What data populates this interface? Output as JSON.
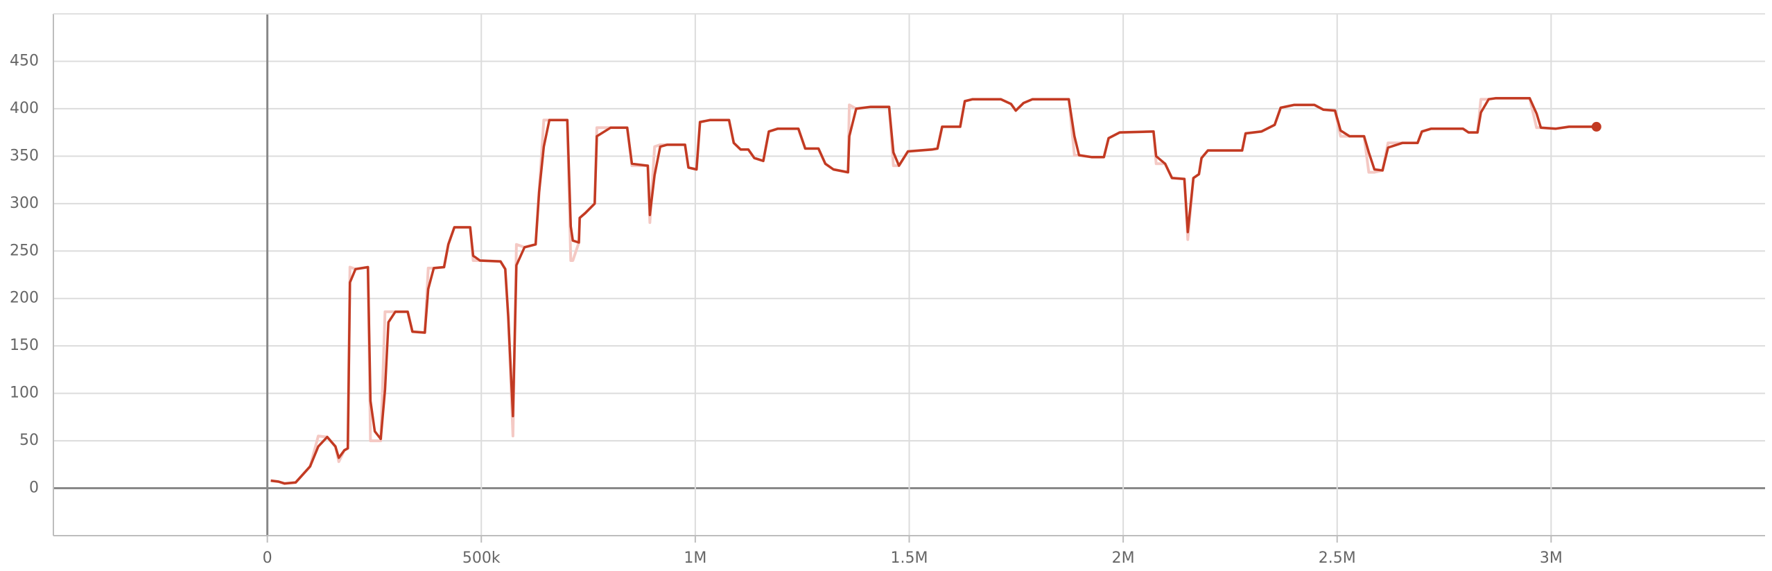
{
  "chart_data": {
    "type": "line",
    "xlim": [
      -500000,
      3500000
    ],
    "ylim": [
      -50,
      500
    ],
    "xticks": [
      0,
      {
        "value": 500000,
        "label": "500k"
      },
      {
        "value": 1000000,
        "label": "1M"
      },
      {
        "value": 1500000,
        "label": "1.5M"
      },
      {
        "value": 2000000,
        "label": "2M"
      },
      {
        "value": 2500000,
        "label": "2.5M"
      },
      {
        "value": 3000000,
        "label": "3M"
      }
    ],
    "yticks": [
      0,
      50,
      100,
      150,
      200,
      250,
      300,
      350,
      400,
      450
    ],
    "grid": true,
    "x": [
      8000,
      26000,
      40000,
      66000,
      82000,
      100000,
      119000,
      140000,
      159000,
      167000,
      180000,
      188000,
      193000,
      206000,
      235000,
      241000,
      251000,
      265000,
      275000,
      283000,
      299000,
      328000,
      339000,
      368000,
      376000,
      389000,
      413000,
      423000,
      437000,
      474000,
      481000,
      497000,
      545000,
      556000,
      563000,
      574000,
      582000,
      601000,
      627000,
      635000,
      646000,
      659000,
      701000,
      709000,
      714000,
      728000,
      730000,
      743000,
      765000,
      770000,
      802000,
      841000,
      852000,
      889000,
      894000,
      905000,
      918000,
      934000,
      976000,
      984000,
      1003000,
      1011000,
      1034000,
      1079000,
      1090000,
      1106000,
      1124000,
      1138000,
      1159000,
      1172000,
      1193000,
      1241000,
      1257000,
      1288000,
      1304000,
      1323000,
      1357000,
      1360000,
      1376000,
      1410000,
      1453000,
      1463000,
      1476000,
      1497000,
      1553000,
      1566000,
      1577000,
      1619000,
      1630000,
      1648000,
      1714000,
      1738000,
      1749000,
      1767000,
      1788000,
      1873000,
      1886000,
      1897000,
      1926000,
      1955000,
      1966000,
      1992000,
      2071000,
      2077000,
      2098000,
      2114000,
      2143000,
      2151000,
      2164000,
      2177000,
      2183000,
      2198000,
      2278000,
      2286000,
      2323000,
      2354000,
      2368000,
      2399000,
      2447000,
      2468000,
      2495000,
      2508000,
      2529000,
      2563000,
      2574000,
      2587000,
      2606000,
      2619000,
      2653000,
      2688000,
      2698000,
      2720000,
      2794000,
      2807000,
      2828000,
      2836000,
      2854000,
      2870000,
      2950000,
      2966000,
      2976000,
      3011000,
      3042000,
      3106000
    ],
    "series": [
      {
        "color": "#f4c9c4",
        "values": [
          8,
          7,
          5,
          6,
          14,
          23,
          55,
          54,
          44,
          28,
          40,
          42,
          233,
          231,
          233,
          50,
          50,
          50,
          186,
          186,
          186,
          186,
          165,
          164,
          232,
          232,
          233,
          257,
          275,
          275,
          240,
          240,
          239,
          231,
          181,
          55,
          257,
          254,
          257,
          312,
          388,
          388,
          388,
          240,
          240,
          259,
          285,
          290,
          300,
          380,
          380,
          380,
          340,
          340,
          280,
          360,
          362,
          362,
          362,
          338,
          336,
          386,
          388,
          388,
          364,
          357,
          357,
          348,
          345,
          376,
          379,
          379,
          358,
          358,
          342,
          336,
          333,
          404,
          400,
          402,
          402,
          340,
          340,
          355,
          357,
          358,
          381,
          381,
          408,
          410,
          410,
          405,
          398,
          406,
          410,
          410,
          351,
          351,
          349,
          349,
          369,
          375,
          376,
          342,
          342,
          327,
          326,
          262,
          327,
          331,
          348,
          356,
          356,
          374,
          376,
          383,
          401,
          404,
          404,
          399,
          398,
          371,
          371,
          371,
          333,
          333,
          335,
          364,
          364,
          364,
          376,
          379,
          379,
          375,
          375,
          410,
          410,
          411,
          411,
          380,
          380,
          379,
          381,
          381
        ]
      },
      {
        "color": "#c23a22",
        "values": [
          8,
          7,
          5,
          6,
          14,
          23,
          44,
          54,
          44,
          32,
          40,
          42,
          217,
          231,
          233,
          92,
          60,
          52,
          104,
          175,
          186,
          186,
          165,
          164,
          210,
          232,
          233,
          257,
          275,
          275,
          245,
          240,
          239,
          231,
          181,
          76,
          235,
          254,
          257,
          312,
          360,
          388,
          388,
          276,
          261,
          259,
          285,
          290,
          300,
          371,
          380,
          380,
          342,
          340,
          288,
          330,
          360,
          362,
          362,
          338,
          336,
          386,
          388,
          388,
          364,
          357,
          357,
          348,
          345,
          376,
          379,
          379,
          358,
          358,
          342,
          336,
          333,
          371,
          400,
          402,
          402,
          354,
          340,
          355,
          357,
          358,
          381,
          381,
          408,
          410,
          410,
          405,
          398,
          406,
          410,
          410,
          371,
          351,
          349,
          349,
          369,
          375,
          376,
          350,
          342,
          327,
          326,
          270,
          327,
          331,
          348,
          356,
          356,
          374,
          376,
          383,
          401,
          404,
          404,
          399,
          398,
          377,
          371,
          371,
          354,
          336,
          335,
          359,
          364,
          364,
          376,
          379,
          379,
          375,
          375,
          396,
          410,
          411,
          411,
          395,
          380,
          379,
          381,
          381
        ]
      }
    ]
  }
}
